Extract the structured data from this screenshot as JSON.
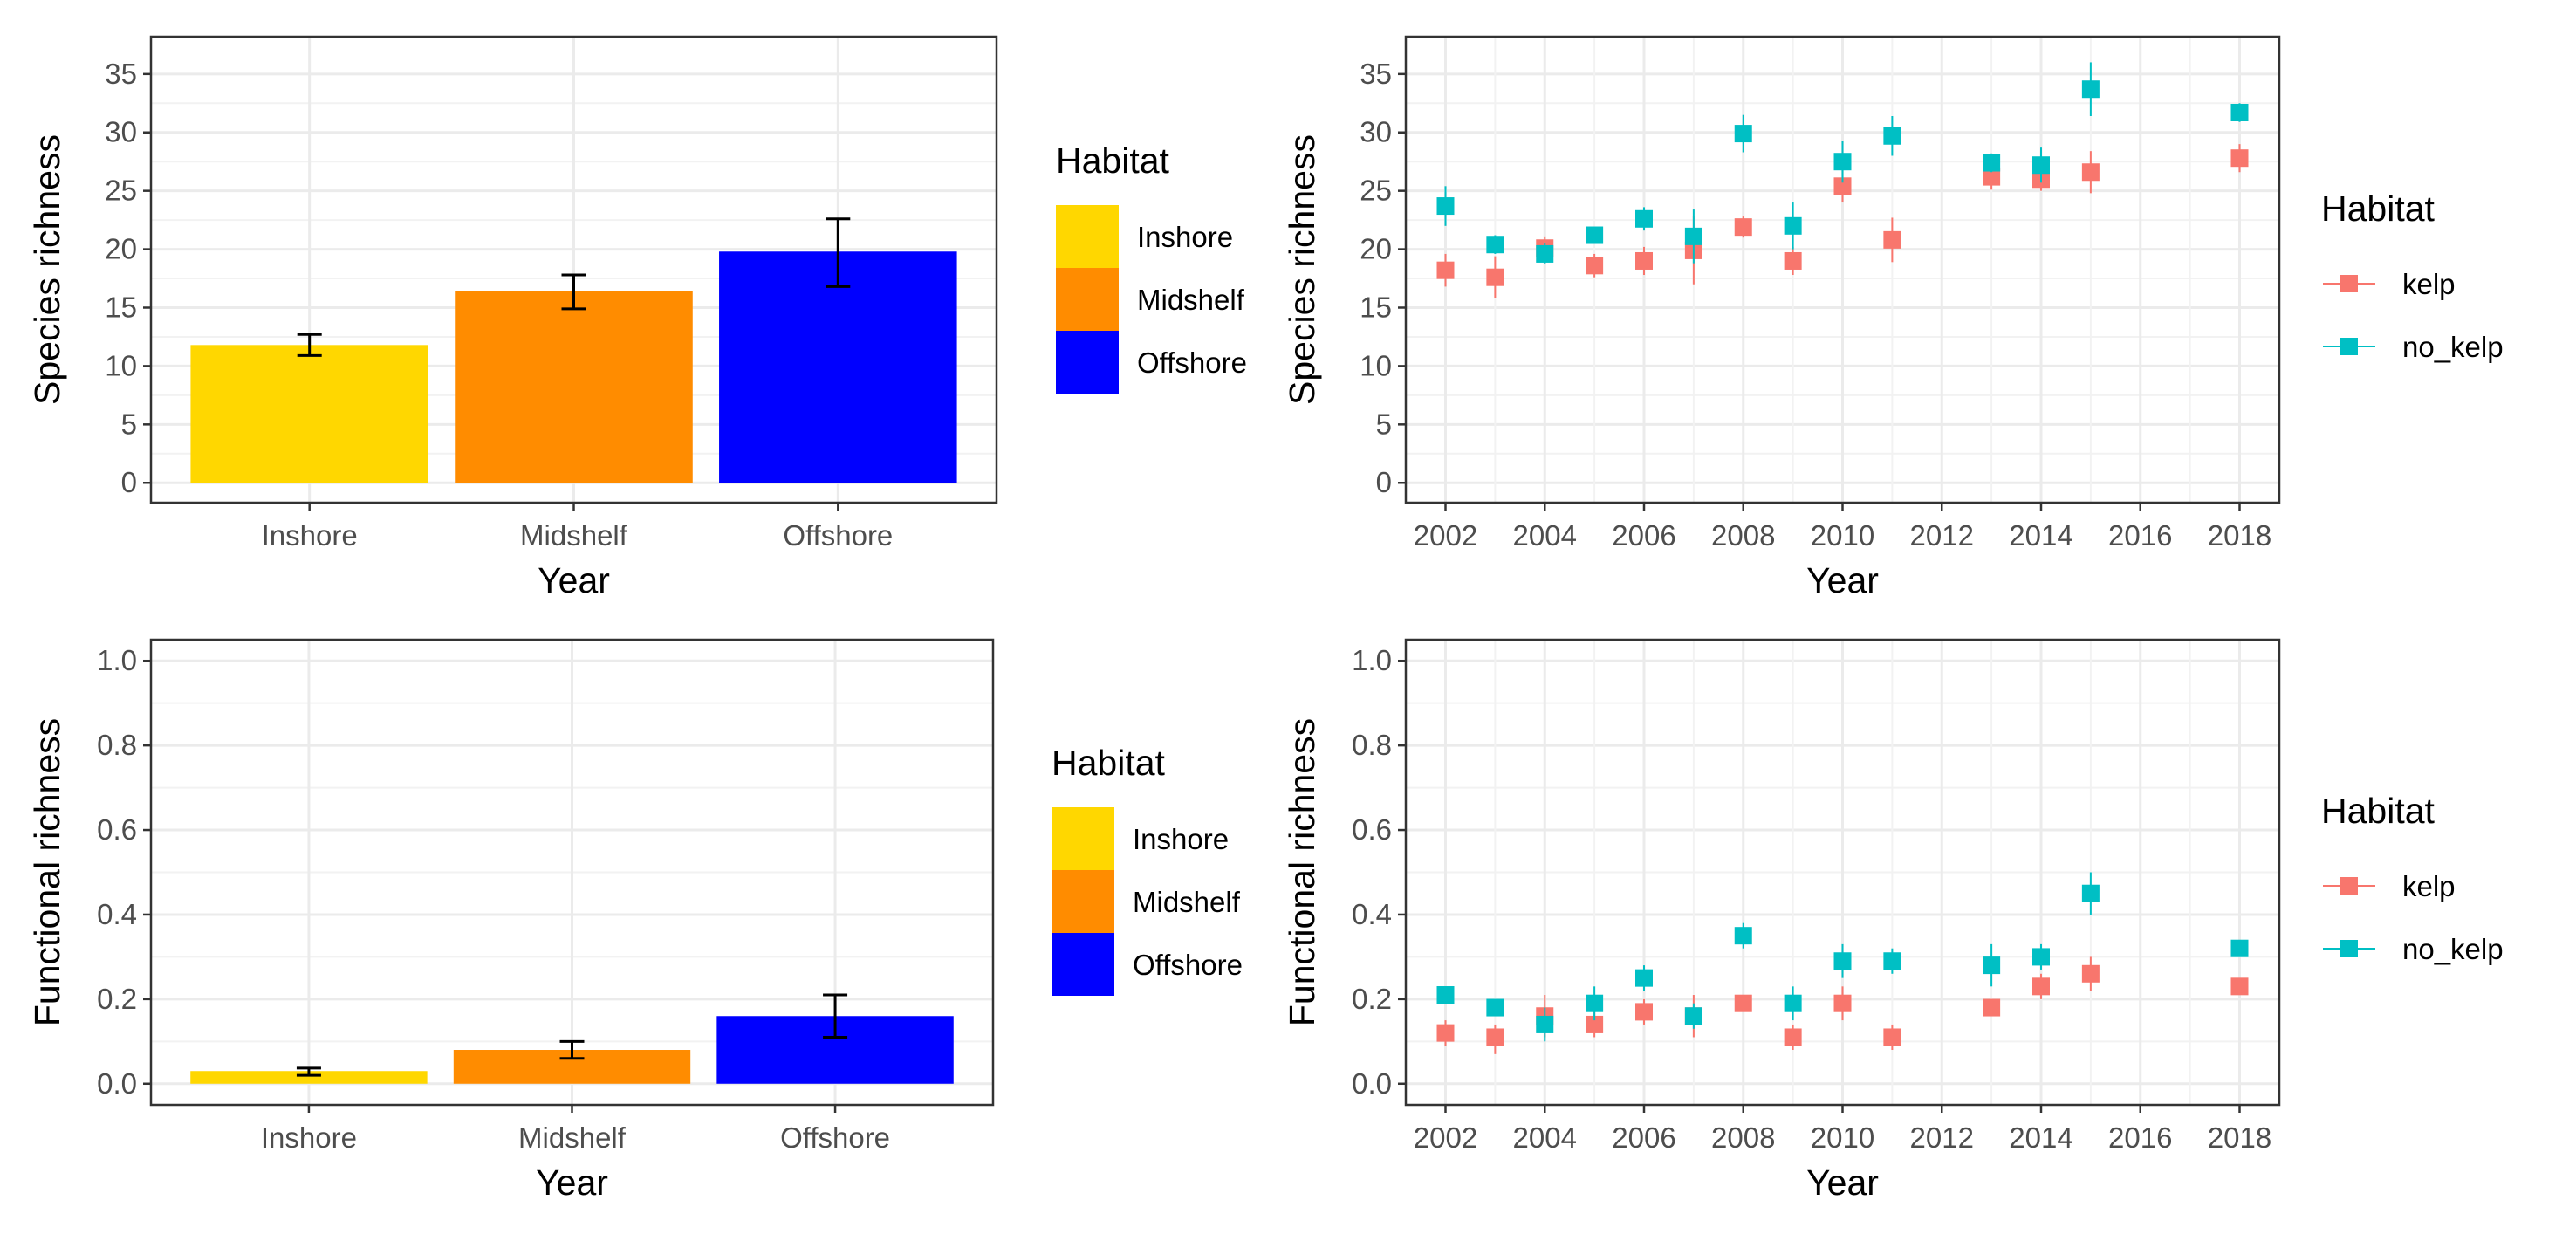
{
  "colors": {
    "Inshore": "#FFD700",
    "Midshelf": "#FF8C00",
    "Offshore": "#0000FF",
    "kelp": "#F8766D",
    "no_kelp": "#00BFC4",
    "grid": "#EBEBEB",
    "panel_border": "#333333"
  },
  "chart_data": [
    {
      "type": "bar",
      "panel": "top-left",
      "title": "",
      "xlabel": "Year",
      "ylabel": "Species richness",
      "categories": [
        "Inshore",
        "Midshelf",
        "Offshore"
      ],
      "values": [
        11.8,
        16.4,
        19.8
      ],
      "error_low": [
        10.9,
        14.9,
        16.8
      ],
      "error_high": [
        12.7,
        17.8,
        22.6
      ],
      "ylim": [
        -1.7,
        38.2
      ],
      "yticks": [
        0,
        5,
        10,
        15,
        20,
        25,
        30,
        35
      ],
      "ytick_labels": [
        "0",
        "5",
        "10",
        "15",
        "20",
        "25",
        "30",
        "35"
      ],
      "grid": true,
      "legend": {
        "title": "Habitat",
        "position": "right",
        "items": [
          "Inshore",
          "Midshelf",
          "Offshore"
        ]
      }
    },
    {
      "type": "scatter",
      "panel": "top-right",
      "title": "",
      "xlabel": "Year",
      "ylabel": "Species richness",
      "xlim": [
        2001.2,
        2018.8
      ],
      "xticks": [
        2002,
        2004,
        2006,
        2008,
        2010,
        2012,
        2014,
        2016,
        2018
      ],
      "xtick_labels": [
        "2002",
        "2004",
        "2006",
        "2008",
        "2010",
        "2012",
        "2014",
        "2016",
        "2018"
      ],
      "ylim": [
        -1.7,
        38.2
      ],
      "yticks": [
        0,
        5,
        10,
        15,
        20,
        25,
        30,
        35
      ],
      "ytick_labels": [
        "0",
        "5",
        "10",
        "15",
        "20",
        "25",
        "30",
        "35"
      ],
      "grid": true,
      "legend": {
        "title": "Habitat",
        "position": "right",
        "items": [
          "kelp",
          "no_kelp"
        ]
      },
      "series": [
        {
          "name": "kelp",
          "x": [
            2002,
            2003,
            2004,
            2005,
            2006,
            2007,
            2008,
            2009,
            2010,
            2011,
            2013,
            2014,
            2015,
            2018
          ],
          "y": [
            18.2,
            17.6,
            20.1,
            18.6,
            19.0,
            19.9,
            21.9,
            19.0,
            25.4,
            20.8,
            26.2,
            26.0,
            26.6,
            27.8
          ],
          "error_low": [
            16.8,
            15.8,
            19.1,
            17.6,
            17.8,
            17.0,
            21.0,
            17.8,
            24.0,
            18.9,
            25.1,
            25.0,
            24.8,
            26.6
          ],
          "error_high": [
            19.6,
            19.4,
            21.1,
            19.6,
            20.2,
            22.8,
            22.8,
            20.2,
            26.8,
            22.7,
            27.3,
            27.0,
            28.4,
            29.0
          ]
        },
        {
          "name": "no_kelp",
          "x": [
            2002,
            2003,
            2004,
            2005,
            2006,
            2007,
            2008,
            2009,
            2010,
            2011,
            2013,
            2014,
            2015,
            2018
          ],
          "y": [
            23.7,
            20.4,
            19.6,
            21.2,
            22.6,
            21.1,
            29.9,
            22.0,
            27.5,
            29.7,
            27.4,
            27.2,
            33.7,
            31.7
          ],
          "error_low": [
            22.0,
            19.6,
            18.7,
            20.6,
            21.6,
            18.8,
            28.3,
            20.0,
            25.7,
            28.0,
            26.6,
            25.7,
            31.4,
            30.9
          ],
          "error_high": [
            25.4,
            21.2,
            20.5,
            21.8,
            23.6,
            23.4,
            31.5,
            24.0,
            29.3,
            31.4,
            28.2,
            28.7,
            36.0,
            32.5
          ]
        }
      ]
    },
    {
      "type": "bar",
      "panel": "bottom-left",
      "title": "",
      "xlabel": "Year",
      "ylabel": "Functional richness",
      "categories": [
        "Inshore",
        "Midshelf",
        "Offshore"
      ],
      "values": [
        0.03,
        0.08,
        0.16
      ],
      "error_low": [
        0.02,
        0.06,
        0.11
      ],
      "error_high": [
        0.037,
        0.1,
        0.21
      ],
      "ylim": [
        -0.05,
        1.05
      ],
      "yticks": [
        0.0,
        0.2,
        0.4,
        0.6,
        0.8,
        1.0
      ],
      "ytick_labels": [
        "0.0",
        "0.2",
        "0.4",
        "0.6",
        "0.8",
        "1.0"
      ],
      "grid": true,
      "legend": {
        "title": "Habitat",
        "position": "right",
        "items": [
          "Inshore",
          "Midshelf",
          "Offshore"
        ]
      }
    },
    {
      "type": "scatter",
      "panel": "bottom-right",
      "title": "",
      "xlabel": "Year",
      "ylabel": "Functional richness",
      "xlim": [
        2001.2,
        2018.8
      ],
      "xticks": [
        2002,
        2004,
        2006,
        2008,
        2010,
        2012,
        2014,
        2016,
        2018
      ],
      "xtick_labels": [
        "2002",
        "2004",
        "2006",
        "2008",
        "2010",
        "2012",
        "2014",
        "2016",
        "2018"
      ],
      "ylim": [
        -0.05,
        1.05
      ],
      "yticks": [
        0.0,
        0.2,
        0.4,
        0.6,
        0.8,
        1.0
      ],
      "ytick_labels": [
        "0.0",
        "0.2",
        "0.4",
        "0.6",
        "0.8",
        "1.0"
      ],
      "grid": true,
      "legend": {
        "title": "Habitat",
        "position": "right",
        "items": [
          "kelp",
          "no_kelp"
        ]
      },
      "series": [
        {
          "name": "kelp",
          "x": [
            2002,
            2003,
            2004,
            2005,
            2006,
            2007,
            2008,
            2009,
            2010,
            2011,
            2013,
            2014,
            2015,
            2018
          ],
          "y": [
            0.12,
            0.11,
            0.16,
            0.14,
            0.17,
            0.16,
            0.19,
            0.11,
            0.19,
            0.11,
            0.18,
            0.23,
            0.26,
            0.23
          ],
          "error_low": [
            0.09,
            0.07,
            0.11,
            0.11,
            0.14,
            0.11,
            0.17,
            0.08,
            0.15,
            0.08,
            0.16,
            0.2,
            0.22,
            0.21
          ],
          "error_high": [
            0.15,
            0.14,
            0.21,
            0.17,
            0.2,
            0.21,
            0.21,
            0.14,
            0.23,
            0.14,
            0.2,
            0.26,
            0.3,
            0.25
          ]
        },
        {
          "name": "no_kelp",
          "x": [
            2002,
            2003,
            2004,
            2005,
            2006,
            2007,
            2008,
            2009,
            2010,
            2011,
            2013,
            2014,
            2015,
            2018
          ],
          "y": [
            0.21,
            0.18,
            0.14,
            0.19,
            0.25,
            0.16,
            0.35,
            0.19,
            0.29,
            0.29,
            0.28,
            0.3,
            0.45,
            0.32
          ],
          "error_low": [
            0.19,
            0.16,
            0.1,
            0.15,
            0.22,
            0.13,
            0.32,
            0.15,
            0.25,
            0.26,
            0.23,
            0.27,
            0.4,
            0.3
          ],
          "error_high": [
            0.23,
            0.2,
            0.18,
            0.23,
            0.28,
            0.19,
            0.38,
            0.23,
            0.33,
            0.32,
            0.33,
            0.33,
            0.5,
            0.34
          ]
        }
      ]
    }
  ]
}
